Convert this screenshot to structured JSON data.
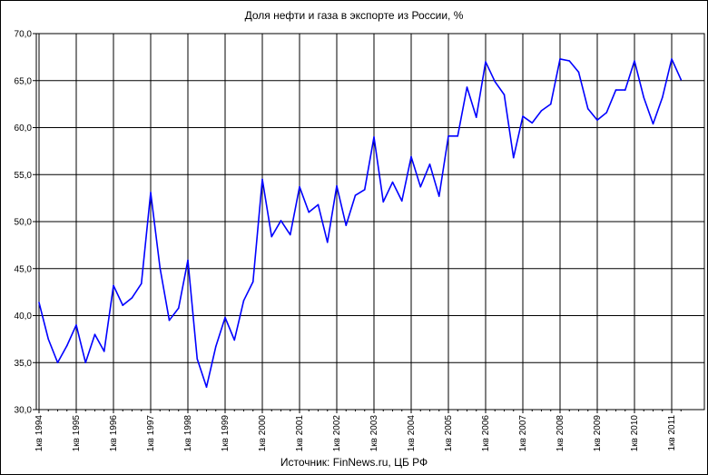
{
  "chart_data": {
    "type": "line",
    "title": "Доля нефти и газа в экспорте из России, %",
    "source": "Источник: FinNews.ru, ЦБ РФ",
    "ylim": [
      30,
      70
    ],
    "y_ticks": [
      "70,0",
      "65,0",
      "60,0",
      "55,0",
      "50,0",
      "45,0",
      "40,0",
      "35,0",
      "30,0"
    ],
    "x_tick_labels": [
      "1кв 1994",
      "1кв 1995",
      "1кв 1996",
      "1кв 1997",
      "1кв 1998",
      "1кв 1999",
      "1кв 2000",
      "1кв 2001",
      "1кв 2002",
      "1кв 2003",
      "1кв 2004",
      "1кв 2005",
      "1кв 2006",
      "1кв 2007",
      "1кв 2008",
      "1кв 2009",
      "1кв 2010",
      "1кв 2011"
    ],
    "grid": true,
    "line_color": "#0000ff",
    "series": [
      {
        "values": [
          41.4,
          37.5,
          35.0,
          36.8,
          39.0,
          35.0,
          38.0,
          36.2,
          43.2,
          41.1,
          41.9,
          43.4,
          53.1,
          45.1,
          39.5,
          40.8,
          45.9,
          35.4,
          32.4,
          36.7,
          39.8,
          37.4,
          41.6,
          43.6,
          54.5,
          48.4,
          50.1,
          48.6,
          53.7,
          51.0,
          51.8,
          47.8,
          53.8,
          49.6,
          52.8,
          53.4,
          59.0,
          52.1,
          54.2,
          52.2,
          56.9,
          53.7,
          56.1,
          52.7,
          59.1,
          59.1,
          64.3,
          61.1,
          67.0,
          64.9,
          63.5,
          56.8,
          61.2,
          60.5,
          61.8,
          62.5,
          67.3,
          67.1,
          65.9,
          62.0,
          60.8,
          61.6,
          64.0,
          64.0,
          67.1,
          63.2,
          60.4,
          63.2,
          67.3,
          65.1
        ]
      }
    ]
  }
}
